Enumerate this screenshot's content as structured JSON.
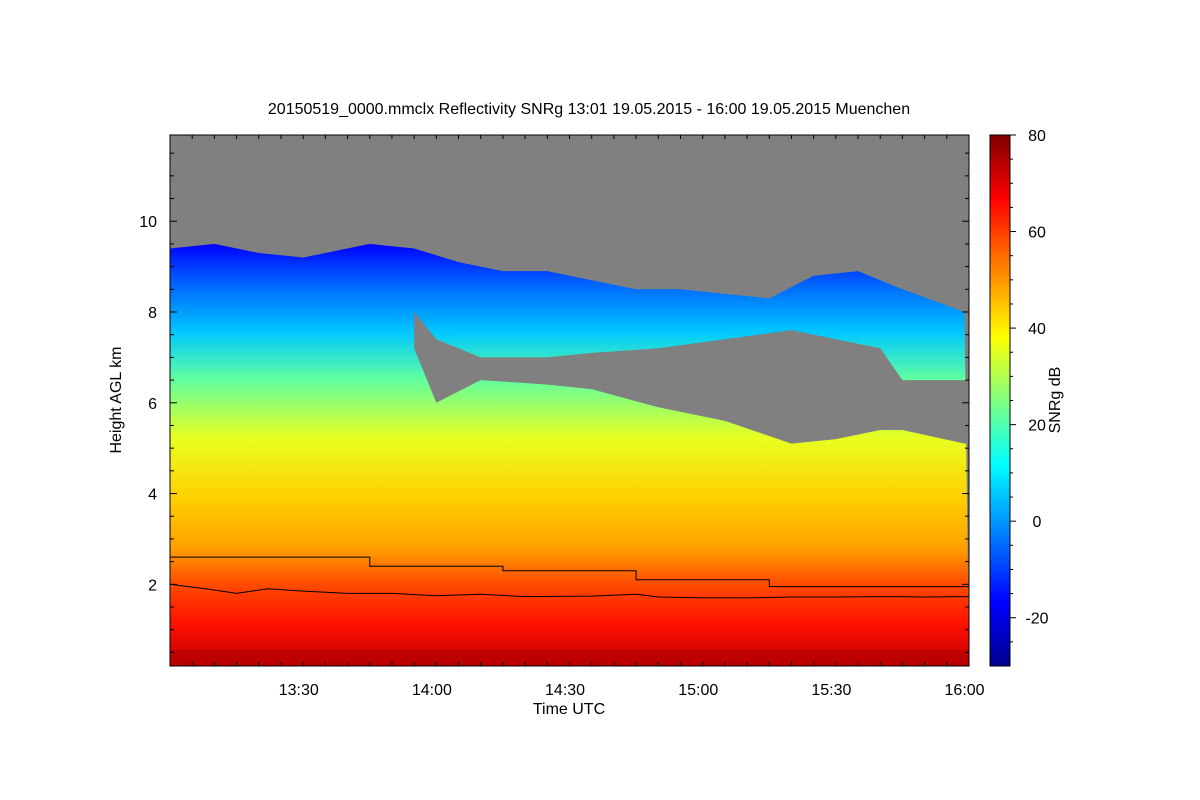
{
  "chart_data": {
    "type": "heatmap",
    "title": "20150519_0000.mmclx Reflectivity SNRg   13:01 19.05.2015 - 16:00 19.05.2015 Muenchen",
    "xlabel": "Time UTC",
    "ylabel": "Height AGL km",
    "colorbar_label": "SNRg dB",
    "xlim": [
      "13:01",
      "16:01"
    ],
    "ylim": [
      0.2,
      11.9
    ],
    "x_ticks": [
      "13:30",
      "14:00",
      "14:30",
      "15:00",
      "15:30",
      "16:00"
    ],
    "y_ticks": [
      2,
      4,
      6,
      8,
      10
    ],
    "colorbar_range": [
      -30,
      80
    ],
    "colorbar_ticks": [
      -20,
      0,
      20,
      40,
      60,
      80
    ],
    "no_signal_color": "#808080",
    "colormap": [
      "#00008f",
      "#0000ff",
      "#0080ff",
      "#00ffff",
      "#80ff80",
      "#ffff00",
      "#ff8000",
      "#ff0000",
      "#800000"
    ],
    "echo_top_km": [
      [
        0,
        9.4
      ],
      [
        10,
        9.5
      ],
      [
        20,
        9.3
      ],
      [
        30,
        9.2
      ],
      [
        45,
        9.5
      ],
      [
        55,
        9.4
      ],
      [
        65,
        9.1
      ],
      [
        75,
        8.9
      ],
      [
        85,
        8.9
      ],
      [
        95,
        8.7
      ],
      [
        105,
        8.5
      ],
      [
        115,
        8.5
      ],
      [
        125,
        8.4
      ],
      [
        135,
        8.3
      ],
      [
        145,
        8.8
      ],
      [
        155,
        8.9
      ],
      [
        165,
        8.5
      ],
      [
        179,
        8.0
      ]
    ],
    "gap_region_km": [
      [
        55,
        8.0,
        7.2
      ],
      [
        60,
        7.4,
        6.0
      ],
      [
        70,
        7.0,
        6.5
      ],
      [
        85,
        7.0,
        6.4
      ],
      [
        95,
        7.1,
        6.3
      ],
      [
        110,
        7.2,
        5.9
      ],
      [
        125,
        7.4,
        5.6
      ],
      [
        140,
        7.6,
        5.1
      ],
      [
        150,
        7.4,
        5.2
      ],
      [
        160,
        7.2,
        5.4
      ],
      [
        165,
        6.5,
        5.4
      ],
      [
        179,
        6.5,
        5.1
      ]
    ],
    "series": [
      {
        "type": "step",
        "points": [
          [
            0,
            2.6
          ],
          [
            45,
            2.6
          ],
          [
            45,
            2.4
          ],
          [
            75,
            2.4
          ],
          [
            75,
            2.3
          ],
          [
            105,
            2.3
          ],
          [
            105,
            2.1
          ],
          [
            135,
            2.1
          ],
          [
            135,
            1.95
          ],
          [
            180,
            1.95
          ]
        ]
      },
      {
        "type": "line",
        "points": [
          [
            0,
            2.0
          ],
          [
            8,
            1.9
          ],
          [
            15,
            1.8
          ],
          [
            22,
            1.9
          ],
          [
            30,
            1.85
          ],
          [
            40,
            1.8
          ],
          [
            50,
            1.8
          ],
          [
            60,
            1.75
          ],
          [
            70,
            1.78
          ],
          [
            80,
            1.73
          ],
          [
            95,
            1.74
          ],
          [
            105,
            1.78
          ],
          [
            110,
            1.72
          ],
          [
            120,
            1.7
          ],
          [
            130,
            1.7
          ],
          [
            140,
            1.72
          ],
          [
            150,
            1.72
          ],
          [
            160,
            1.73
          ],
          [
            170,
            1.72
          ],
          [
            180,
            1.73
          ]
        ]
      }
    ]
  }
}
